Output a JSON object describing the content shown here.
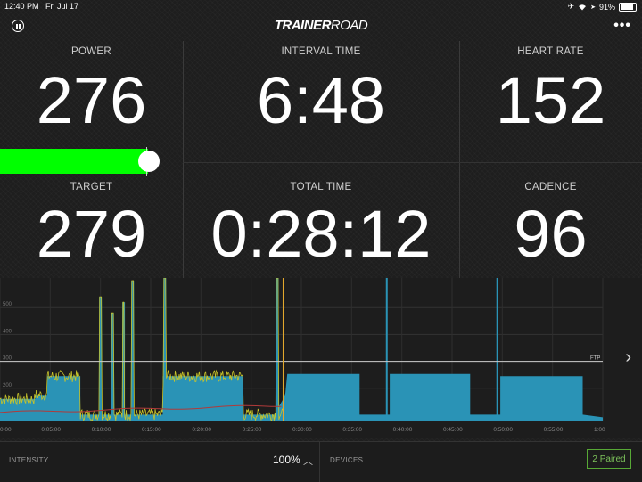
{
  "status_bar": {
    "time": "12:40 PM",
    "date": "Fri Jul 17",
    "battery": "91%",
    "icons": [
      "airplane-icon",
      "wifi-icon",
      "location-icon",
      "battery-icon"
    ]
  },
  "header": {
    "logo_bold": "TRAINER",
    "logo_light": "ROAD",
    "pause_icon": "pause-icon",
    "more_icon": "more-icon"
  },
  "metrics": {
    "power": {
      "label": "POWER",
      "value": "276"
    },
    "interval_time": {
      "label": "INTERVAL TIME",
      "value": "6:48"
    },
    "heart_rate": {
      "label": "HEART RATE",
      "value": "152"
    },
    "target": {
      "label": "TARGET",
      "value": "279"
    },
    "total_time": {
      "label": "TOTAL TIME",
      "value": "0:28:12"
    },
    "cadence": {
      "label": "CADENCE",
      "value": "96"
    }
  },
  "colors": {
    "power_bar": "#00ff00",
    "workout_fill": "#2a93b6",
    "power_line": "#c8c42a",
    "hr_line": "#b03a3a",
    "ftp_line": "#cccccc",
    "progress": "#e2a72c",
    "paired": "#57a836"
  },
  "chart_data": {
    "type": "area",
    "y_ticks": [
      "200",
      "300",
      "400",
      "500"
    ],
    "x_ticks": [
      "0:00",
      "0:05:00",
      "0:10:00",
      "0:15:00",
      "0:20:00",
      "0:25:00",
      "0:30:00",
      "0:35:00",
      "0:40:00",
      "0:45:00",
      "0:50:00",
      "0:55:00",
      "1:00"
    ],
    "ftp_label": "FTP",
    "ftp": 300,
    "ylim": [
      80,
      610
    ],
    "xlim": [
      0,
      60
    ],
    "elapsed_min": 28.2
  },
  "footer": {
    "intensity_label": "INTENSITY",
    "intensity_value": "100%",
    "devices_label": "DEVICES",
    "paired_label": "2 Paired"
  }
}
